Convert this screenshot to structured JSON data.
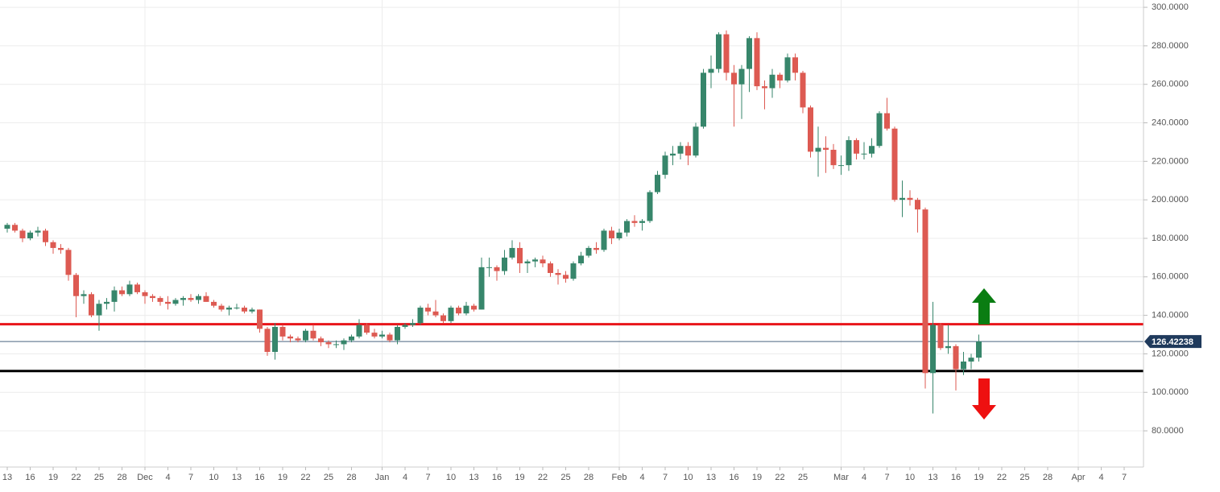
{
  "chart_data": {
    "type": "candlestick",
    "x": [
      "Nov 13",
      "Nov 14",
      "Nov 15",
      "Nov 16",
      "Nov 17",
      "Nov 18",
      "Nov 19",
      "Nov 20",
      "Nov 21",
      "Nov 22",
      "Nov 23",
      "Nov 24",
      "Nov 25",
      "Nov 26",
      "Nov 27",
      "Nov 28",
      "Nov 29",
      "Nov 30",
      "Dec 1",
      "Dec 2",
      "Dec 3",
      "Dec 4",
      "Dec 5",
      "Dec 6",
      "Dec 7",
      "Dec 8",
      "Dec 9",
      "Dec 10",
      "Dec 11",
      "Dec 12",
      "Dec 13",
      "Dec 14",
      "Dec 15",
      "Dec 16",
      "Dec 17",
      "Dec 18",
      "Dec 19",
      "Dec 20",
      "Dec 21",
      "Dec 22",
      "Dec 23",
      "Dec 24",
      "Dec 25",
      "Dec 26",
      "Dec 27",
      "Dec 28",
      "Dec 29",
      "Dec 30",
      "Dec 31",
      "Jan 1",
      "Jan 2",
      "Jan 3",
      "Jan 4",
      "Jan 5",
      "Jan 6",
      "Jan 7",
      "Jan 8",
      "Jan 9",
      "Jan 10",
      "Jan 11",
      "Jan 12",
      "Jan 13",
      "Jan 14",
      "Jan 15",
      "Jan 16",
      "Jan 17",
      "Jan 18",
      "Jan 19",
      "Jan 20",
      "Jan 21",
      "Jan 22",
      "Jan 23",
      "Jan 24",
      "Jan 25",
      "Jan 26",
      "Jan 27",
      "Jan 28",
      "Jan 29",
      "Jan 30",
      "Jan 31",
      "Feb 1",
      "Feb 2",
      "Feb 3",
      "Feb 4",
      "Feb 5",
      "Feb 6",
      "Feb 7",
      "Feb 8",
      "Feb 9",
      "Feb 10",
      "Feb 11",
      "Feb 12",
      "Feb 13",
      "Feb 14",
      "Feb 15",
      "Feb 16",
      "Feb 17",
      "Feb 18",
      "Feb 19",
      "Feb 20",
      "Feb 21",
      "Feb 22",
      "Feb 23",
      "Feb 24",
      "Feb 25",
      "Feb 26",
      "Feb 27",
      "Feb 28",
      "Feb 29",
      "Mar 1",
      "Mar 2",
      "Mar 3",
      "Mar 4",
      "Mar 5",
      "Mar 6",
      "Mar 7",
      "Mar 8",
      "Mar 9",
      "Mar 10",
      "Mar 11",
      "Mar 12",
      "Mar 13",
      "Mar 14",
      "Mar 15",
      "Mar 16",
      "Mar 17",
      "Mar 18",
      "Mar 19"
    ],
    "open": [
      185,
      187,
      184,
      180,
      183,
      184,
      178,
      175,
      174,
      161,
      150,
      151,
      140,
      146,
      147,
      153,
      151,
      156,
      152,
      150,
      149,
      147,
      146,
      148,
      149,
      148,
      150,
      147,
      145,
      143,
      144,
      144,
      142,
      143,
      133,
      121,
      134,
      129,
      128,
      127,
      132,
      128,
      126,
      125,
      125,
      127,
      129,
      135,
      131,
      129,
      130,
      127,
      134,
      135,
      136,
      144,
      142,
      140,
      137,
      144,
      141,
      145,
      143,
      165,
      165,
      163,
      170,
      175,
      167,
      168,
      169,
      167,
      162,
      161,
      159,
      167,
      171,
      175,
      174,
      184,
      180,
      183,
      189,
      188,
      189,
      204,
      213,
      223,
      224,
      228,
      223,
      238,
      266,
      268,
      286,
      266,
      260,
      268,
      284,
      259,
      258,
      265,
      262,
      274,
      266,
      248,
      225,
      227,
      226,
      218,
      218,
      231,
      224,
      224,
      228,
      245,
      237,
      200,
      201,
      200,
      195,
      110,
      135,
      123,
      124,
      112,
      116,
      118
    ],
    "high": [
      188,
      188,
      185,
      184,
      186,
      185,
      179,
      177,
      175,
      162,
      153,
      152,
      148,
      149,
      155,
      155,
      158,
      157,
      153,
      151,
      150,
      150,
      149,
      150,
      151,
      151,
      152,
      148,
      146,
      145,
      146,
      145,
      144,
      143,
      134,
      136,
      135,
      130,
      129,
      133,
      135,
      129,
      127,
      127,
      128,
      130,
      138,
      136,
      133,
      132,
      131,
      135,
      136,
      138,
      145,
      146,
      148,
      141,
      145,
      145,
      147,
      146,
      170,
      170,
      166,
      174,
      179,
      178,
      169,
      170,
      171,
      168,
      164,
      163,
      168,
      173,
      176,
      178,
      185,
      186,
      185,
      190,
      192,
      190,
      205,
      215,
      225,
      228,
      230,
      230,
      240,
      268,
      275,
      287,
      288,
      270,
      270,
      285,
      287,
      262,
      268,
      266,
      276,
      276,
      267,
      249,
      238,
      233,
      229,
      223,
      233,
      232,
      230,
      232,
      246,
      253,
      238,
      210,
      205,
      201,
      196,
      147,
      136,
      135,
      125,
      121,
      120,
      130
    ],
    "low": [
      183,
      183,
      178,
      179,
      181,
      176,
      172,
      172,
      158,
      139,
      146,
      139,
      132,
      143,
      142,
      150,
      150,
      151,
      146,
      147,
      145,
      143,
      145,
      145,
      147,
      146,
      147,
      144,
      142,
      140,
      143,
      141,
      141,
      131,
      119,
      117,
      127,
      126,
      126,
      126,
      127,
      124,
      123,
      123,
      122,
      126,
      128,
      130,
      128,
      128,
      126,
      125,
      133,
      134,
      135,
      140,
      139,
      136,
      136,
      140,
      140,
      142,
      143,
      160,
      158,
      161,
      169,
      162,
      162,
      165,
      165,
      160,
      156,
      157,
      158,
      166,
      170,
      172,
      173,
      177,
      179,
      181,
      186,
      184,
      188,
      203,
      211,
      218,
      221,
      218,
      222,
      237,
      258,
      266,
      262,
      238,
      242,
      256,
      257,
      247,
      253,
      258,
      261,
      262,
      245,
      222,
      212,
      214,
      216,
      213,
      215,
      221,
      221,
      222,
      227,
      236,
      199,
      191,
      197,
      183,
      102,
      89,
      122,
      120,
      101,
      109,
      112,
      116
    ],
    "close": [
      187,
      184,
      180,
      183,
      184,
      178,
      175,
      174,
      161,
      150,
      151,
      140,
      146,
      147,
      153,
      151,
      156,
      152,
      150,
      149,
      147,
      146,
      148,
      149,
      148,
      150,
      147,
      145,
      143,
      144,
      144,
      142,
      143,
      133,
      121,
      134,
      129,
      128,
      127,
      132,
      128,
      126,
      125,
      125,
      127,
      129,
      135,
      131,
      129,
      130,
      127,
      134,
      135,
      136,
      144,
      142,
      140,
      137,
      144,
      141,
      145,
      143,
      165,
      165,
      163,
      170,
      175,
      167,
      168,
      169,
      167,
      162,
      161,
      159,
      167,
      171,
      175,
      174,
      184,
      180,
      183,
      189,
      188,
      189,
      204,
      213,
      223,
      224,
      228,
      223,
      238,
      266,
      268,
      286,
      266,
      260,
      268,
      284,
      259,
      258,
      265,
      262,
      274,
      266,
      248,
      225,
      227,
      226,
      218,
      218,
      231,
      224,
      224,
      228,
      245,
      237,
      200,
      201,
      200,
      195,
      110,
      135,
      123,
      124,
      112,
      116,
      118,
      126.42238
    ],
    "up_color": "#37866b",
    "down_color": "#dd5a52",
    "ylim": [
      61.2,
      303.8
    ],
    "yticks": [
      {
        "value": 80,
        "label": "80.0000"
      },
      {
        "value": 100,
        "label": "100.0000"
      },
      {
        "value": 120,
        "label": "120.0000"
      },
      {
        "value": 140,
        "label": "140.0000"
      },
      {
        "value": 160,
        "label": "160.0000"
      },
      {
        "value": 180,
        "label": "180.0000"
      },
      {
        "value": 200,
        "label": "200.0000"
      },
      {
        "value": 220,
        "label": "220.0000"
      },
      {
        "value": 240,
        "label": "240.0000"
      },
      {
        "value": 260,
        "label": "260.0000"
      },
      {
        "value": 280,
        "label": "280.0000"
      },
      {
        "value": 300,
        "label": "300.0000"
      }
    ],
    "xticks": [
      {
        "value": "Nov 13",
        "label": "13"
      },
      {
        "value": "Nov 16",
        "label": "16"
      },
      {
        "value": "Nov 19",
        "label": "19"
      },
      {
        "value": "Nov 22",
        "label": "22"
      },
      {
        "value": "Nov 25",
        "label": "25"
      },
      {
        "value": "Nov 28",
        "label": "28"
      },
      {
        "value": "Dec 1",
        "label": "Dec"
      },
      {
        "value": "Dec 4",
        "label": "4"
      },
      {
        "value": "Dec 7",
        "label": "7"
      },
      {
        "value": "Dec 10",
        "label": "10"
      },
      {
        "value": "Dec 13",
        "label": "13"
      },
      {
        "value": "Dec 16",
        "label": "16"
      },
      {
        "value": "Dec 19",
        "label": "19"
      },
      {
        "value": "Dec 22",
        "label": "22"
      },
      {
        "value": "Dec 25",
        "label": "25"
      },
      {
        "value": "Dec 28",
        "label": "28"
      },
      {
        "value": "Jan 1",
        "label": "Jan"
      },
      {
        "value": "Jan 4",
        "label": "4"
      },
      {
        "value": "Jan 7",
        "label": "7"
      },
      {
        "value": "Jan 10",
        "label": "10"
      },
      {
        "value": "Jan 13",
        "label": "13"
      },
      {
        "value": "Jan 16",
        "label": "16"
      },
      {
        "value": "Jan 19",
        "label": "19"
      },
      {
        "value": "Jan 22",
        "label": "22"
      },
      {
        "value": "Jan 25",
        "label": "25"
      },
      {
        "value": "Jan 28",
        "label": "28"
      },
      {
        "value": "Feb 1",
        "label": "Feb"
      },
      {
        "value": "Feb 4",
        "label": "4"
      },
      {
        "value": "Feb 7",
        "label": "7"
      },
      {
        "value": "Feb 10",
        "label": "10"
      },
      {
        "value": "Feb 13",
        "label": "13"
      },
      {
        "value": "Feb 16",
        "label": "16"
      },
      {
        "value": "Feb 19",
        "label": "19"
      },
      {
        "value": "Feb 22",
        "label": "22"
      },
      {
        "value": "Feb 25",
        "label": "25"
      },
      {
        "value": "Mar 1",
        "label": "Mar"
      },
      {
        "value": "Mar 4",
        "label": "4"
      },
      {
        "value": "Mar 7",
        "label": "7"
      },
      {
        "value": "Mar 10",
        "label": "10"
      },
      {
        "value": "Mar 13",
        "label": "13"
      },
      {
        "value": "Mar 16",
        "label": "16"
      },
      {
        "value": "Mar 19",
        "label": "19"
      },
      {
        "value": "Mar 22",
        "label": "22"
      },
      {
        "value": "Mar 25",
        "label": "25"
      },
      {
        "value": "Mar 28",
        "label": "28"
      },
      {
        "value": "Apr 1",
        "label": "Apr"
      },
      {
        "value": "Apr 4",
        "label": "4"
      },
      {
        "value": "Apr 7",
        "label": "7"
      }
    ],
    "hlines": [
      {
        "value": 135.4,
        "color": "#e8141a"
      },
      {
        "value": 111.1,
        "color": "#000000"
      }
    ],
    "last_price_color": "#1f3a5c",
    "grid": true
  }
}
